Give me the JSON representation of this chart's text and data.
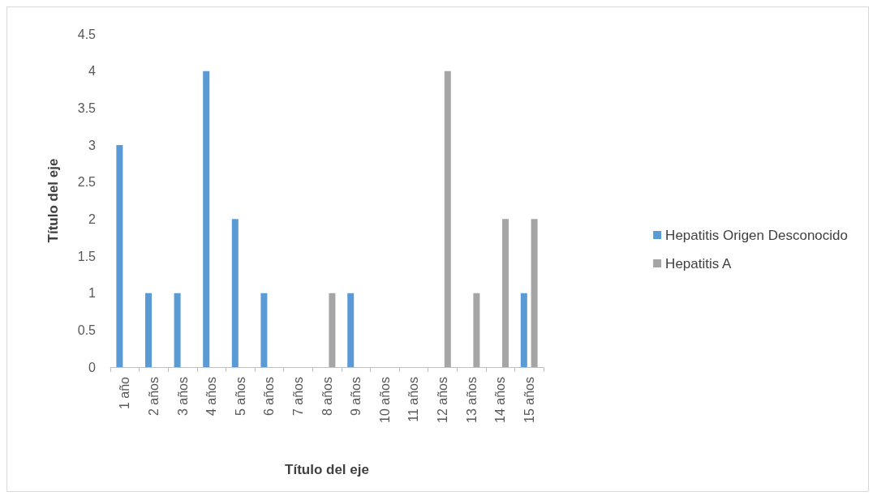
{
  "chart_data": {
    "type": "bar",
    "xlabel": "Título del eje",
    "ylabel": "Título del eje",
    "categories": [
      "1 año",
      "2 años",
      "3 años",
      "4 años",
      "5 años",
      "6 años",
      "7 años",
      "8 años",
      "9 años",
      "10 años",
      "11 años",
      "12 años",
      "13 años",
      "14 años",
      "15 años"
    ],
    "series": [
      {
        "name": "Hepatitis Origen Desconocido",
        "color": "#5b9bd5",
        "values": [
          3,
          1,
          1,
          4,
          2,
          1,
          0,
          0,
          1,
          0,
          0,
          0,
          0,
          0,
          1
        ]
      },
      {
        "name": "Hepatitis A",
        "color": "#a5a5a5",
        "values": [
          0,
          0,
          0,
          0,
          0,
          0,
          0,
          1,
          0,
          0,
          0,
          4,
          1,
          2,
          2
        ]
      }
    ],
    "ylim": [
      0,
      4.5
    ],
    "yticks": [
      0,
      0.5,
      1,
      1.5,
      2,
      2.5,
      3,
      3.5,
      4,
      4.5
    ],
    "grid": false,
    "legend": "right"
  }
}
